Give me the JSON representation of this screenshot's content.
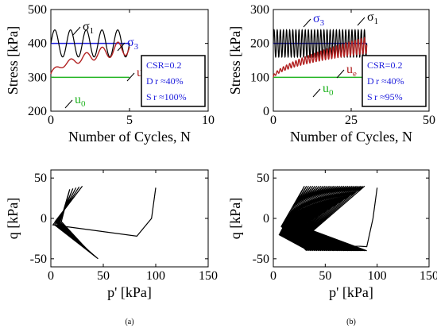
{
  "chart_data": [
    {
      "id": "a-top",
      "type": "line",
      "xlabel": "Number of Cycles, N",
      "ylabel": "Stress [kPa]",
      "xlim": [
        0,
        10
      ],
      "ylim": [
        200,
        500
      ],
      "xticks": [
        "0",
        "5",
        "10"
      ],
      "yticks": [
        "200",
        "300",
        "400",
        "500"
      ],
      "grid": false,
      "series": [
        {
          "name": "σ1",
          "color": "#000000",
          "cycles": 5,
          "n_end": 5,
          "mean": 400,
          "amplitude": 40
        },
        {
          "name": "σ3",
          "color": "#1e1edc",
          "value": 400,
          "n_end": 5
        },
        {
          "name": "ue",
          "color": "#b22222",
          "start": 310,
          "end": 390,
          "n_end": 5
        },
        {
          "name": "u0",
          "color": "#22b422",
          "value": 300,
          "n_end": 5
        }
      ],
      "annotations": [
        {
          "label": "σ",
          "sub": "1",
          "color": "#000000"
        },
        {
          "label": "σ",
          "sub": "3",
          "color": "#1e1edc"
        },
        {
          "label": "u",
          "sub": "e",
          "color": "#b22222"
        },
        {
          "label": "u",
          "sub": "0",
          "color": "#22b422"
        }
      ],
      "box": [
        "CSR=0.2",
        "D r ≈40%",
        "S r ≈100%"
      ]
    },
    {
      "id": "b-top",
      "type": "line",
      "xlabel": "Number of Cycles, N",
      "ylabel": "Stress [kPa]",
      "xlim": [
        0,
        50
      ],
      "ylim": [
        0,
        300
      ],
      "xticks": [
        "0",
        "25",
        "50"
      ],
      "yticks": [
        "0",
        "100",
        "200",
        "300"
      ],
      "grid": false,
      "series": [
        {
          "name": "σ1",
          "color": "#000000",
          "cycles": 30,
          "n_end": 30,
          "mean": 200,
          "amplitude": 40
        },
        {
          "name": "σ3",
          "color": "#1e1edc",
          "value": 200,
          "n_end": 30
        },
        {
          "name": "ue",
          "color": "#b22222",
          "start": 100,
          "end": 195,
          "n_end": 30
        },
        {
          "name": "u0",
          "color": "#22b422",
          "value": 100,
          "n_end": 30
        }
      ],
      "annotations": [
        {
          "label": "σ",
          "sub": "3",
          "color": "#1e1edc"
        },
        {
          "label": "σ",
          "sub": "1",
          "color": "#000000"
        },
        {
          "label": "u",
          "sub": "e",
          "color": "#b22222"
        },
        {
          "label": "u",
          "sub": "0",
          "color": "#22b422"
        }
      ],
      "box": [
        "CSR=0.2",
        "D r ≈40%",
        "S r ≈95%"
      ]
    },
    {
      "id": "a-bottom",
      "type": "line",
      "xlabel": "p' [kPa]",
      "ylabel": "q [kPa]",
      "xlim": [
        0,
        150
      ],
      "ylim": [
        -60,
        60
      ],
      "xticks": [
        "0",
        "50",
        "100",
        "150"
      ],
      "yticks": [
        "-50",
        "0",
        "50"
      ],
      "grid": false,
      "series": [
        {
          "name": "stress path",
          "color": "#000000",
          "p_start": 100,
          "p_end_compression": 30,
          "p_end_extension": 45,
          "q_amplitude": 40,
          "cycles": 5
        }
      ],
      "panel_label": "(a)"
    },
    {
      "id": "b-bottom",
      "type": "line",
      "xlabel": "p' [kPa]",
      "ylabel": "q [kPa]",
      "xlim": [
        0,
        150
      ],
      "ylim": [
        -60,
        60
      ],
      "xticks": [
        "0",
        "50",
        "100",
        "150"
      ],
      "yticks": [
        "-50",
        "0",
        "50"
      ],
      "grid": false,
      "series": [
        {
          "name": "stress path",
          "color": "#000000",
          "p_start": 100,
          "p_min": 5,
          "q_amplitude": 40,
          "cycles": 30
        }
      ],
      "panel_label": "(b)"
    }
  ]
}
